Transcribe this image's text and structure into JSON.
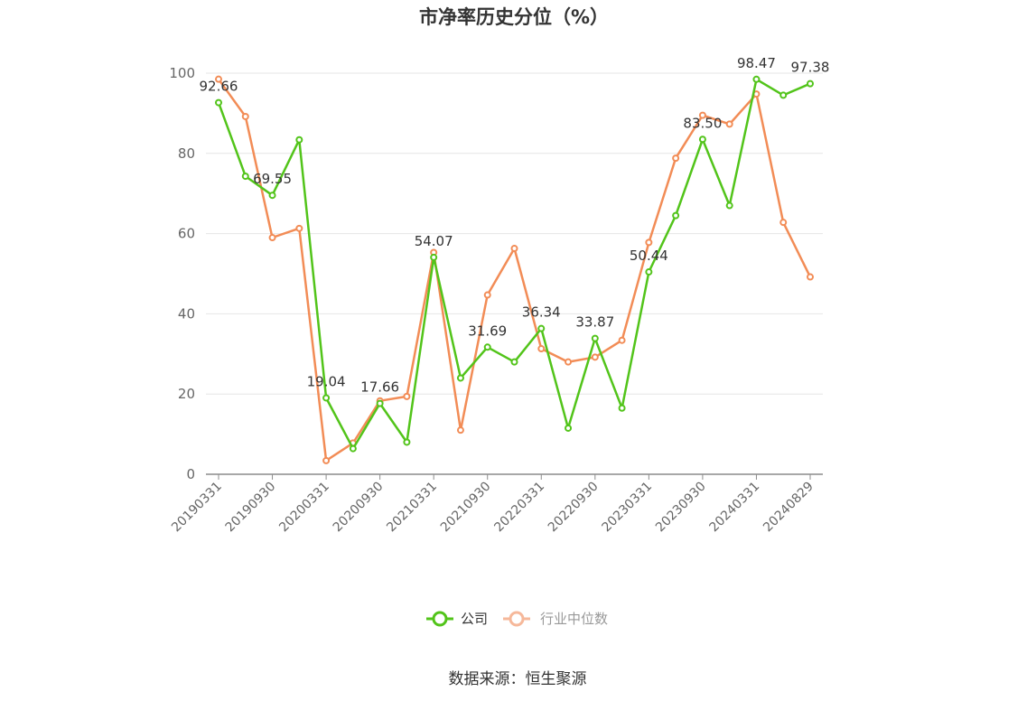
{
  "chart_data": {
    "type": "line",
    "title": "市净率历史分位（%）",
    "ylim": [
      0,
      100
    ],
    "yticks": [
      "0",
      "20",
      "40",
      "60",
      "80",
      "100"
    ],
    "x_tick_labels": [
      "20190331",
      "20190930",
      "20200331",
      "20200930",
      "20210331",
      "20210930",
      "20220331",
      "20220930",
      "20230331",
      "20230930",
      "20240331",
      "20240829"
    ],
    "series": [
      {
        "name": "公司",
        "color": "#52c41a",
        "values": [
          92.66,
          74.3,
          69.55,
          83.4,
          19.04,
          6.4,
          17.66,
          8.0,
          54.07,
          24.0,
          31.69,
          28.0,
          36.34,
          11.5,
          33.87,
          16.5,
          50.44,
          64.5,
          83.5,
          67.0,
          98.47,
          94.5,
          97.38
        ]
      },
      {
        "name": "行业中位数",
        "color": "#f28c56",
        "values": [
          98.5,
          89.2,
          59.0,
          61.3,
          3.4,
          7.8,
          18.3,
          19.4,
          55.3,
          11.0,
          44.7,
          56.3,
          31.3,
          28.0,
          29.2,
          33.4,
          57.8,
          78.8,
          89.5,
          87.3,
          94.8,
          62.8,
          49.2
        ]
      }
    ],
    "data_labels": [
      {
        "series": 0,
        "index": 0,
        "text": "92.66"
      },
      {
        "series": 0,
        "index": 2,
        "text": "69.55"
      },
      {
        "series": 0,
        "index": 4,
        "text": "19.04"
      },
      {
        "series": 0,
        "index": 6,
        "text": "17.66"
      },
      {
        "series": 0,
        "index": 8,
        "text": "54.07"
      },
      {
        "series": 0,
        "index": 10,
        "text": "31.69"
      },
      {
        "series": 0,
        "index": 12,
        "text": "36.34"
      },
      {
        "series": 0,
        "index": 14,
        "text": "33.87"
      },
      {
        "series": 0,
        "index": 16,
        "text": "50.44"
      },
      {
        "series": 0,
        "index": 18,
        "text": "83.50"
      },
      {
        "series": 0,
        "index": 20,
        "text": "98.47"
      },
      {
        "series": 0,
        "index": 22,
        "text": "97.38"
      }
    ],
    "grid": true,
    "legend_position": "bottom"
  },
  "footer": {
    "source": "数据来源：恒生聚源"
  }
}
